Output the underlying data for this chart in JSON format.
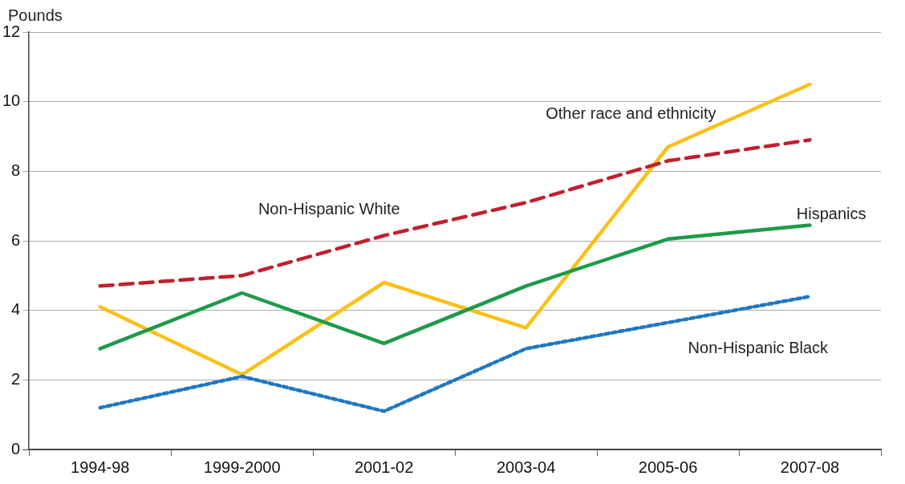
{
  "chart_data": {
    "type": "line",
    "ylabel": "Pounds",
    "categories": [
      "1994-98",
      "1999-2000",
      "2001-02",
      "2003-04",
      "2005-06",
      "2007-08"
    ],
    "ylim": [
      0,
      12
    ],
    "yticks": [
      0,
      2,
      4,
      6,
      8,
      10,
      12
    ],
    "grid": "y",
    "legend": false,
    "marker": "none",
    "series": [
      {
        "name": "Non-Hispanic White",
        "color": "#c0202e",
        "line_style": "dashed",
        "values": [
          4.7,
          5.0,
          6.15,
          7.1,
          8.3,
          8.9
        ]
      },
      {
        "name": "Non-Hispanic Black",
        "color": "#1f78c1",
        "line_style": "dotted",
        "values": [
          1.2,
          2.1,
          1.1,
          2.9,
          3.65,
          4.4
        ]
      },
      {
        "name": "Hispanics",
        "color": "#1e9a48",
        "line_style": "solid",
        "values": [
          2.9,
          4.5,
          3.05,
          4.7,
          6.05,
          6.45
        ]
      },
      {
        "name": "Other race and ethnicity",
        "color": "#fbbf16",
        "line_style": "solid",
        "values": [
          4.1,
          2.15,
          4.8,
          3.5,
          8.7,
          10.5
        ]
      }
    ]
  }
}
